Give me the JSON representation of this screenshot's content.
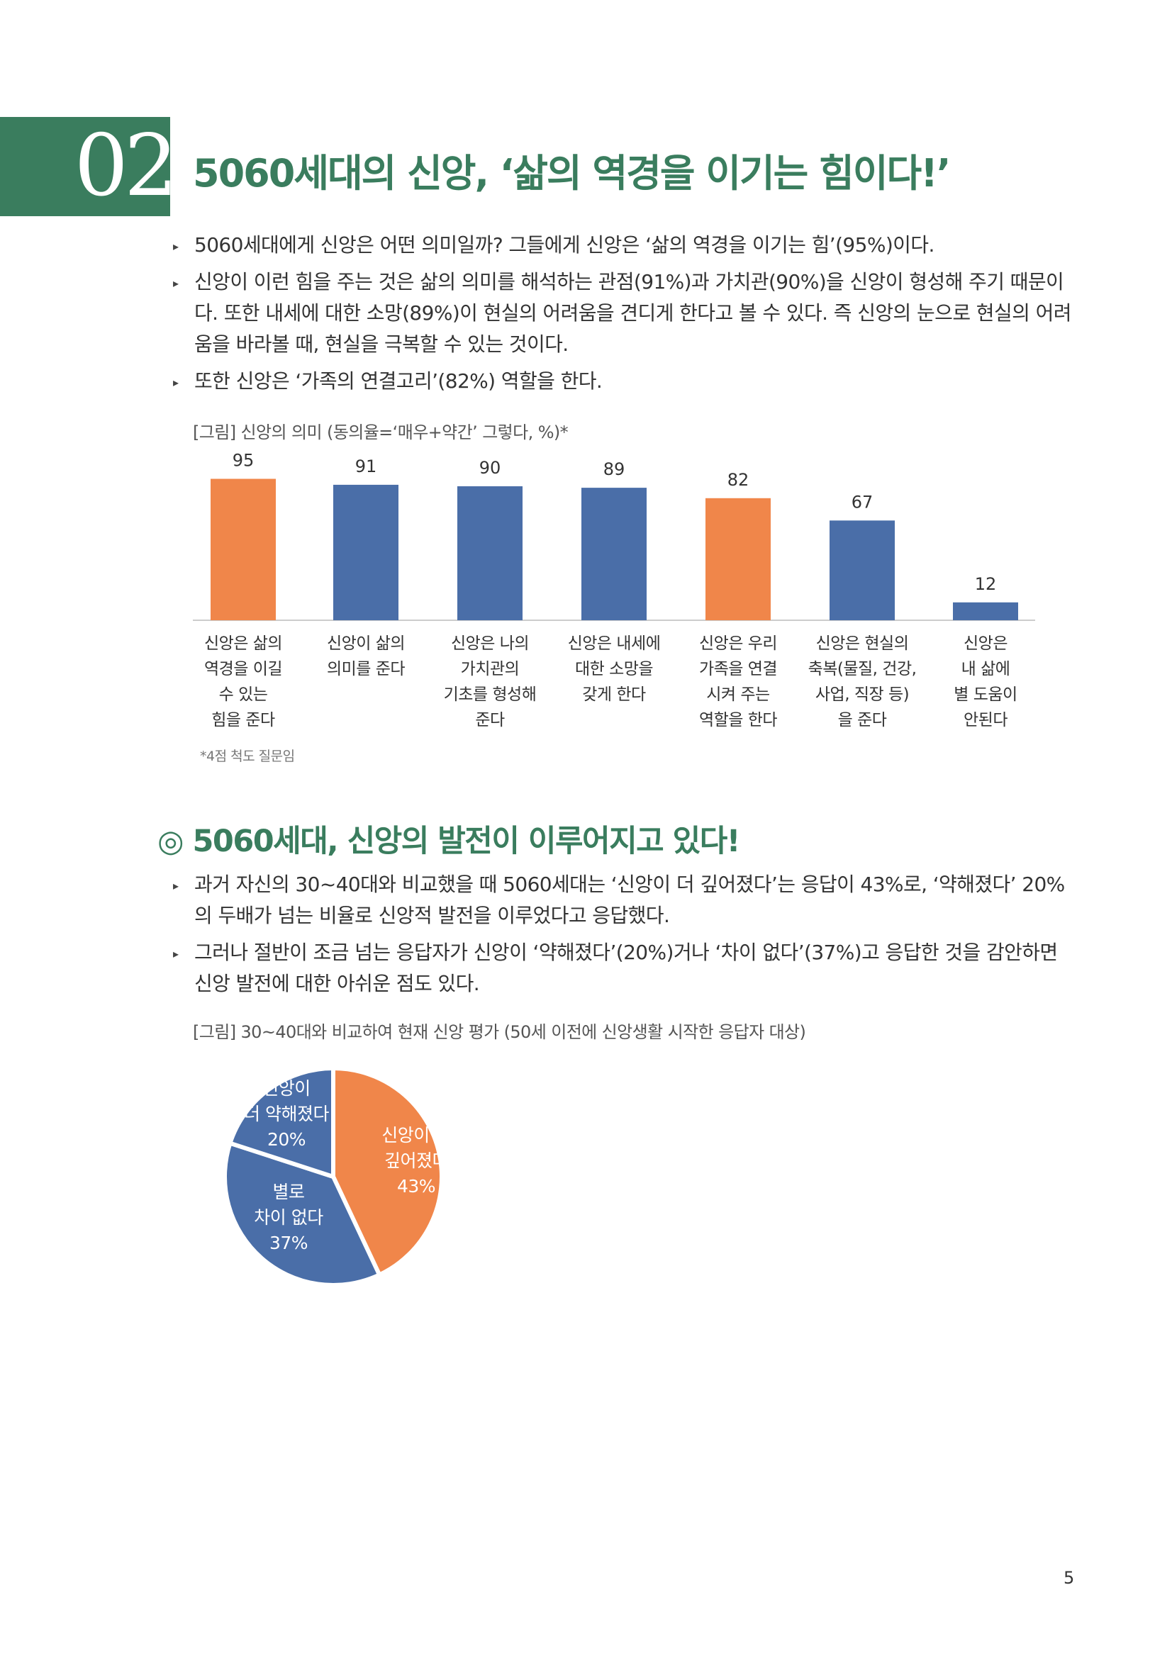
{
  "section": {
    "number": "02",
    "title": "5060세대의 신앙, ‘삶의 역경을 이기는 힘이다!’"
  },
  "bullets_1": [
    "5060세대에게 신앙은 어떤 의미일까? 그들에게 신앙은 ‘삶의 역경을 이기는 힘’(95%)이다.",
    "신앙이 이런 힘을 주는 것은 삶의 의미를 해석하는 관점(91%)과 가치관(90%)을 신앙이 형성해 주기 때문이다. 또한 내세에 대한 소망(89%)이 현실의 어려움을 견디게 한다고 볼 수 있다. 즉 신앙의 눈으로 현실의 어려움을 바라볼 때, 현실을 극복할 수 있는 것이다.",
    "또한 신앙은 ‘가족의 연결고리’(82%) 역할을 한다."
  ],
  "figure1": {
    "caption": "[그림] 신앙의 의미 (동의율=‘매우+약간’ 그렇다, %)*",
    "footnote": "*4점 척도 질문임"
  },
  "subsection": {
    "title": "◎ 5060세대, 신앙의 발전이 이루어지고 있다!"
  },
  "bullets_2": [
    "과거 자신의 30~40대와 비교했을 때 5060세대는 ‘신앙이 더 깊어졌다’는 응답이 43%로, ‘약해졌다’ 20%의 두배가 넘는 비율로 신앙적 발전을 이루었다고 응답했다.",
    "그러나 절반이 조금 넘는 응답자가 신앙이 ‘약해졌다’(20%)거나 ‘차이 없다’(37%)고 응답한 것을 감안하면 신앙 발전에 대한 아쉬운 점도 있다."
  ],
  "figure2": {
    "caption": "[그림] 30~40대와 비교하여 현재 신앙 평가 (50세 이전에 신앙생활 시작한 응답자 대상)"
  },
  "page_number": "5",
  "colors": {
    "accent_green": "#3a7d5e",
    "bar_orange": "#f0864a",
    "bar_blue": "#4a6ea8",
    "text": "#333333"
  },
  "chart_data": [
    {
      "type": "bar",
      "categories": [
        [
          "신앙은 삶의",
          "역경을 이길",
          "수 있는",
          "힘을 준다"
        ],
        [
          "신앙이 삶의",
          "의미를 준다"
        ],
        [
          "신앙은 나의",
          "가치관의",
          "기초를 형성해",
          "준다"
        ],
        [
          "신앙은 내세에",
          "대한 소망을",
          "갖게 한다"
        ],
        [
          "신앙은 우리",
          "가족을 연결",
          "시켜 주는",
          "역할을 한다"
        ],
        [
          "신앙은 현실의",
          "축복(물질, 건강,",
          "사업, 직장 등)",
          "을 준다"
        ],
        [
          "신앙은",
          "내 삶에",
          "별 도움이",
          "안된다"
        ]
      ],
      "values": [
        95,
        91,
        90,
        89,
        82,
        67,
        12
      ],
      "highlight": [
        true,
        false,
        false,
        false,
        true,
        false,
        false
      ],
      "ylim": [
        0,
        100
      ]
    },
    {
      "type": "pie",
      "slices": [
        {
          "label": [
            "신앙이 더",
            "깊어졌다"
          ],
          "value": 43,
          "value_label": "43%",
          "color": "#f0864a"
        },
        {
          "label": [
            "별로",
            "차이 없다"
          ],
          "value": 37,
          "value_label": "37%",
          "color": "#4a6ea8"
        },
        {
          "label": [
            "신앙이",
            "더 약해졌다"
          ],
          "value": 20,
          "value_label": "20%",
          "color": "#4a6ea8"
        }
      ]
    }
  ]
}
